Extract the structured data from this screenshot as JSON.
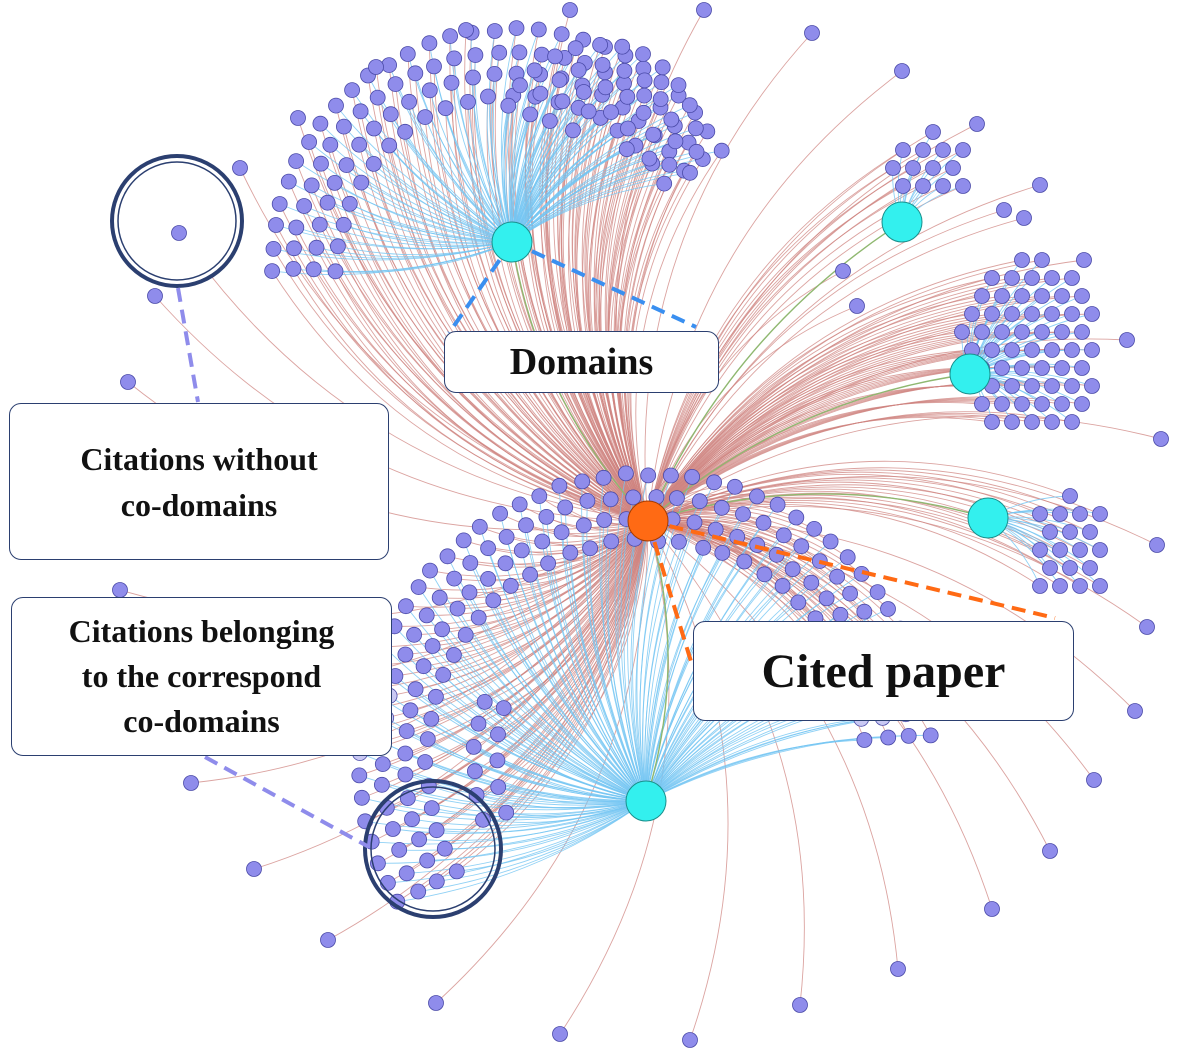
{
  "labels": {
    "domains": "Domains",
    "cited_paper": "Cited paper",
    "citations_without": [
      "Citations without",
      "co-domains"
    ],
    "citations_belonging": [
      "Citations belonging",
      "to the correspond",
      "co-domains"
    ]
  },
  "colors": {
    "citation_node": "#8f8ceb",
    "citation_node_faded": "#c9c8f3",
    "domain_node": "#33f0ee",
    "cited_node": "#ff6a14",
    "citation_edge": "#cf8480",
    "domain_edge": "#74c6f2",
    "domain_link_edge": "#8fb870",
    "leader_blue": "#3a8ff0",
    "leader_orange": "#ff6a14",
    "leader_violet": "#8f8ceb",
    "highlight_ring": "#2b3f70"
  }
}
